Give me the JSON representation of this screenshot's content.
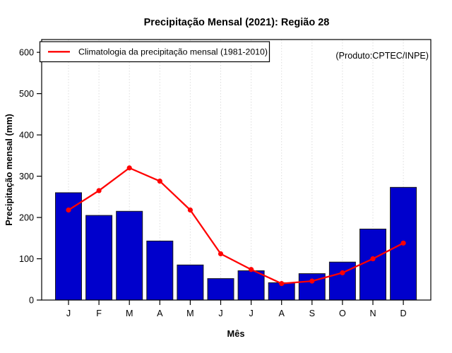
{
  "title": "Precipitação Mensal (2021): Região 28",
  "annotation": {
    "text": "(Produto:CPTEC/INPE)",
    "color": "#8C8C8C"
  },
  "legend": {
    "label": "Climatologia da precipitação mensal (1981-2010)"
  },
  "colors": {
    "bar_fill": "#0000CC",
    "bar_border": "#1A1A1A",
    "line": "#FF0000",
    "grid": "#DCDCDC",
    "axis": "#000000",
    "background": "#FFFFFF"
  },
  "chart_data": {
    "type": "bar",
    "subtype": "bar-with-line-overlay",
    "categories": [
      "J",
      "F",
      "M",
      "A",
      "M",
      "J",
      "J",
      "A",
      "S",
      "O",
      "N",
      "D"
    ],
    "series": [
      {
        "name": "Precipitação mensal 2021",
        "type": "bar",
        "color": "#0000CC",
        "values": [
          260,
          205,
          215,
          143,
          85,
          52,
          71,
          42,
          64,
          92,
          172,
          273
        ]
      },
      {
        "name": "Climatologia da precipitação mensal (1981-2010)",
        "type": "line",
        "color": "#FF0000",
        "values": [
          218,
          265,
          320,
          288,
          218,
          112,
          74,
          40,
          46,
          66,
          100,
          138
        ]
      }
    ],
    "title": "Precipitação Mensal (2021): Região 28",
    "xlabel": "Mês",
    "ylabel": "Precipitação mensal (mm)",
    "ylim": [
      0,
      631
    ],
    "yticks": [
      0,
      100,
      200,
      300,
      400,
      500,
      600
    ],
    "grid": "vertical-dotted",
    "legend_position": "top-left"
  }
}
